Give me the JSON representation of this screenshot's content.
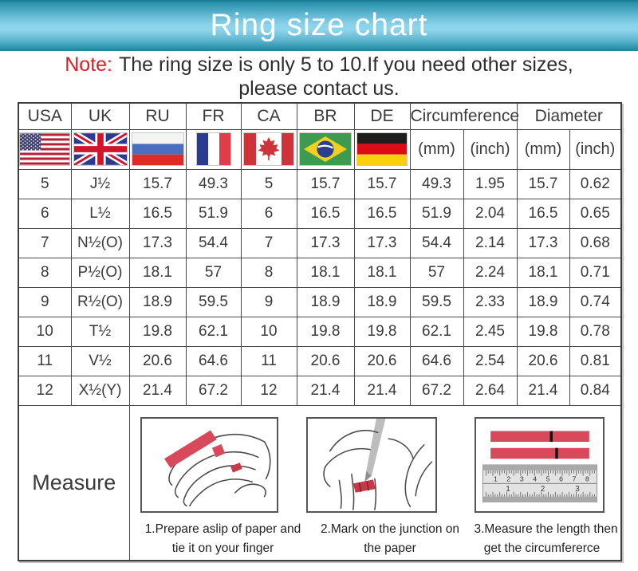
{
  "header": {
    "title": "Ring size chart"
  },
  "note": {
    "label": "Note:",
    "line1": "The ring size is only 5 to 10.If you need other sizes,",
    "line2": "please contact us."
  },
  "table": {
    "columns": [
      "USA",
      "UK",
      "RU",
      "FR",
      "CA",
      "BR",
      "DE"
    ],
    "group_headers": {
      "circumference": "Circumference",
      "diameter": "Diameter"
    },
    "unit_headers": [
      "(mm)",
      "(inch)",
      "(mm)",
      "(inch)"
    ],
    "flags": [
      "usa",
      "uk",
      "ru",
      "fr",
      "ca",
      "br",
      "de"
    ],
    "rows": [
      [
        "5",
        "J½",
        "15.7",
        "49.3",
        "5",
        "15.7",
        "15.7",
        "49.3",
        "1.95",
        "15.7",
        "0.62"
      ],
      [
        "6",
        "L½",
        "16.5",
        "51.9",
        "6",
        "16.5",
        "16.5",
        "51.9",
        "2.04",
        "16.5",
        "0.65"
      ],
      [
        "7",
        "N½(O)",
        "17.3",
        "54.4",
        "7",
        "17.3",
        "17.3",
        "54.4",
        "2.14",
        "17.3",
        "0.68"
      ],
      [
        "8",
        "P½(O)",
        "18.1",
        "57",
        "8",
        "18.1",
        "18.1",
        "57",
        "2.24",
        "18.1",
        "0.71"
      ],
      [
        "9",
        "R½(O)",
        "18.9",
        "59.5",
        "9",
        "18.9",
        "18.9",
        "59.5",
        "2.33",
        "18.9",
        "0.74"
      ],
      [
        "10",
        "T½",
        "19.8",
        "62.1",
        "10",
        "19.8",
        "19.8",
        "62.1",
        "2.45",
        "19.8",
        "0.78"
      ],
      [
        "11",
        "V½",
        "20.6",
        "64.6",
        "11",
        "20.6",
        "20.6",
        "64.6",
        "2.54",
        "20.6",
        "0.81"
      ],
      [
        "12",
        "X½(Y)",
        "21.4",
        "67.2",
        "12",
        "21.4",
        "21.4",
        "67.2",
        "2.64",
        "21.4",
        "0.84"
      ]
    ]
  },
  "measure": {
    "label": "Measure",
    "steps": [
      {
        "caption_line1": "1.Prepare aslip of paper and",
        "caption_line2": "tie it on your finger"
      },
      {
        "caption_line1": "2.Mark on the junction on",
        "caption_line2": "the paper"
      },
      {
        "caption_line1": "3.Measure the length then",
        "caption_line2": "get the circumfererce"
      }
    ],
    "ruler_cm_numbers": [
      "1",
      "2",
      "3",
      "4",
      "5",
      "6",
      "7",
      "8"
    ],
    "ruler_inch_numbers": [
      "1",
      "2",
      "3"
    ]
  },
  "colors": {
    "header_teal_light": "#8ad2e9",
    "header_teal_dark": "#1d8399",
    "note_red": "#e11b22",
    "table_border": "#4a4a4a",
    "strip_red": "#d9495c",
    "text": "#3a3a3a"
  }
}
